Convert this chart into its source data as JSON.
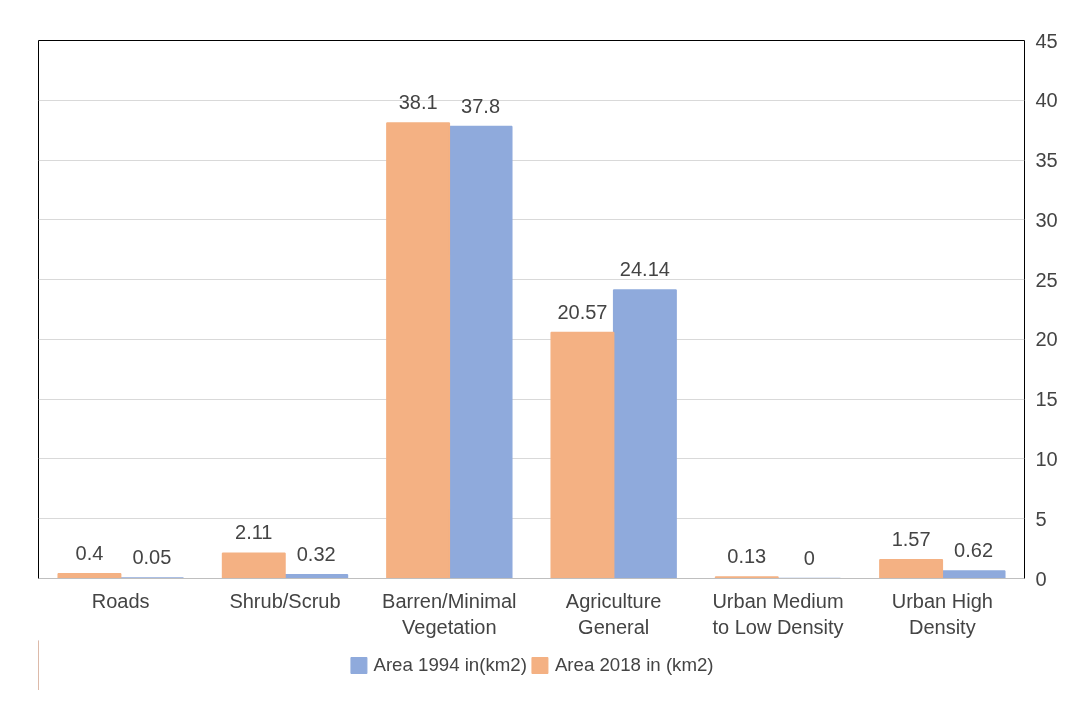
{
  "chart_data": {
    "type": "bar",
    "categories": [
      "Roads",
      "Shrub/Scrub",
      "Barren/Minimal\nVegetation",
      "Agriculture\nGeneral",
      "Urban Medium\nto Low Density",
      "Urban High\nDensity"
    ],
    "series": [
      {
        "name": "Area 1994 in(km2)",
        "color": "#8faadc",
        "values": [
          0.05,
          0.32,
          37.8,
          24.14,
          0,
          0.62
        ]
      },
      {
        "name": "Area 2018 in (km2)",
        "color": "#f4b183",
        "values": [
          0.4,
          2.11,
          38.1,
          20.57,
          0.13,
          1.57
        ]
      }
    ],
    "ylim": [
      0,
      45
    ],
    "yticks": [
      0,
      5,
      10,
      15,
      20,
      25,
      30,
      35,
      40,
      45
    ],
    "grid": "y",
    "legend": "bottom",
    "data_labels": true
  }
}
